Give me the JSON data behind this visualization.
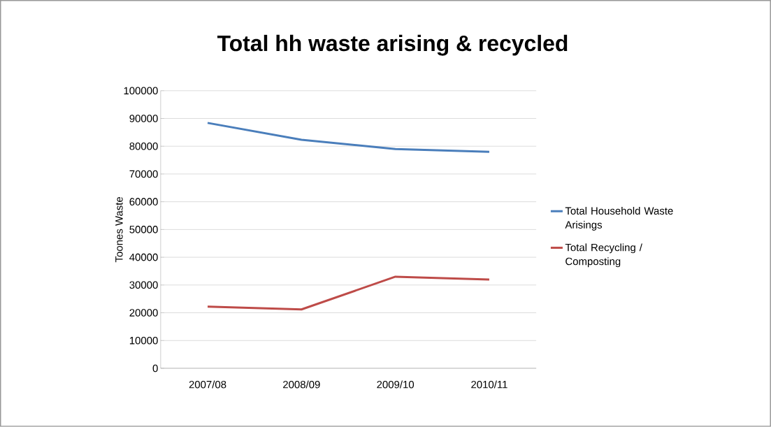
{
  "chart_data": {
    "type": "line",
    "title": "Total hh waste arising & recycled",
    "ylabel": "Toones Waste",
    "categories": [
      "2007/08",
      "2008/09",
      "2009/10",
      "2010/11"
    ],
    "series": [
      {
        "name": "Total Household Waste Arisings",
        "color": "#4a7ebb",
        "values": [
          88400,
          82300,
          79000,
          78000
        ]
      },
      {
        "name": "Total Recycling / Composting",
        "color": "#be4b48",
        "values": [
          22200,
          21200,
          33000,
          32000
        ]
      }
    ],
    "ylim": [
      0,
      100000
    ],
    "yticks": [
      0,
      10000,
      20000,
      30000,
      40000,
      50000,
      60000,
      70000,
      80000,
      90000,
      100000
    ],
    "grid": "y",
    "legend": "right",
    "marker": "none",
    "line_style": "solid"
  }
}
